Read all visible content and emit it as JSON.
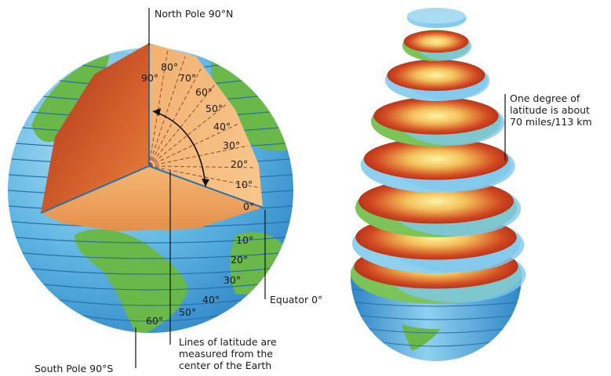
{
  "labels": {
    "north_pole": "North Pole 90°N",
    "south_pole": "South Pole 90°S",
    "equator": "Equator 0°",
    "lines_measured": [
      "Lines of latitude are",
      "measured from the",
      "center of the Earth"
    ],
    "one_degree": [
      "One degree of",
      "latitude is about",
      "70 miles/113 km"
    ]
  },
  "north_degrees": [
    "90°",
    "80°",
    "70°",
    "60°",
    "50°",
    "40°",
    "30°",
    "20°",
    "10°",
    "0°"
  ],
  "south_degrees": [
    "10°",
    "20°",
    "30°",
    "40°",
    "50°",
    "60°"
  ],
  "colors": {
    "ocean": "#5fb6e3",
    "ocean_dark": "#2f86c6",
    "land": "#6ab84a",
    "land_dark": "#3f8f32",
    "core_outer": "#c0361b",
    "core_inner": "#fde27a",
    "latitude_lines": "#2a6fa8"
  }
}
